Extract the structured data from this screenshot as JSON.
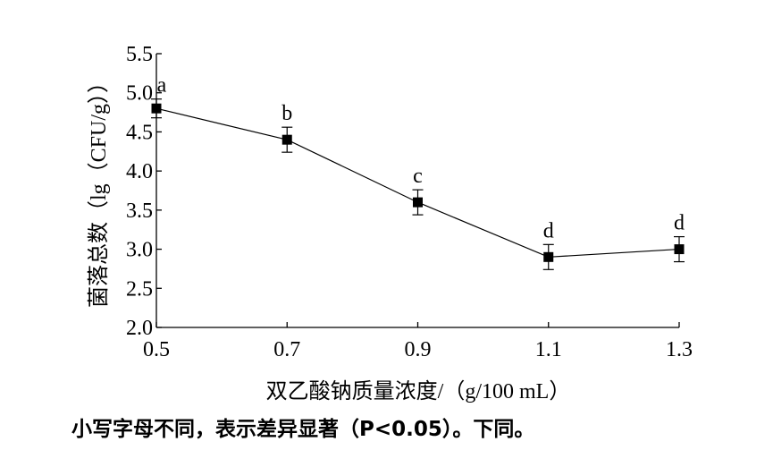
{
  "chart_data": {
    "type": "line",
    "x": [
      0.5,
      0.7,
      0.9,
      1.1,
      1.3
    ],
    "x_tick_labels": [
      "0.5",
      "0.7",
      "0.9",
      "1.1",
      "1.3"
    ],
    "y_ticks": [
      2.0,
      2.5,
      3.0,
      3.5,
      4.0,
      4.5,
      5.0,
      5.5
    ],
    "y_tick_labels": [
      "2.0",
      "2.5",
      "3.0",
      "3.5",
      "4.0",
      "4.5",
      "5.0",
      "5.5"
    ],
    "series": [
      {
        "values": [
          4.8,
          4.4,
          3.6,
          2.9,
          3.0
        ],
        "errors": [
          0.12,
          0.16,
          0.16,
          0.16,
          0.16
        ],
        "labels": [
          "a",
          "b",
          "c",
          "d",
          "d"
        ]
      }
    ],
    "xlim": [
      0.5,
      1.3
    ],
    "ylim": [
      2.0,
      5.5
    ],
    "xlabel": "双乙酸钠质量浓度/（g/100 mL）",
    "ylabel": "菌落总数（lg（CFU/g））",
    "grid": false,
    "marker": "square"
  },
  "caption": "小写字母不同，表示差异显著（P<0.05）。下同。"
}
